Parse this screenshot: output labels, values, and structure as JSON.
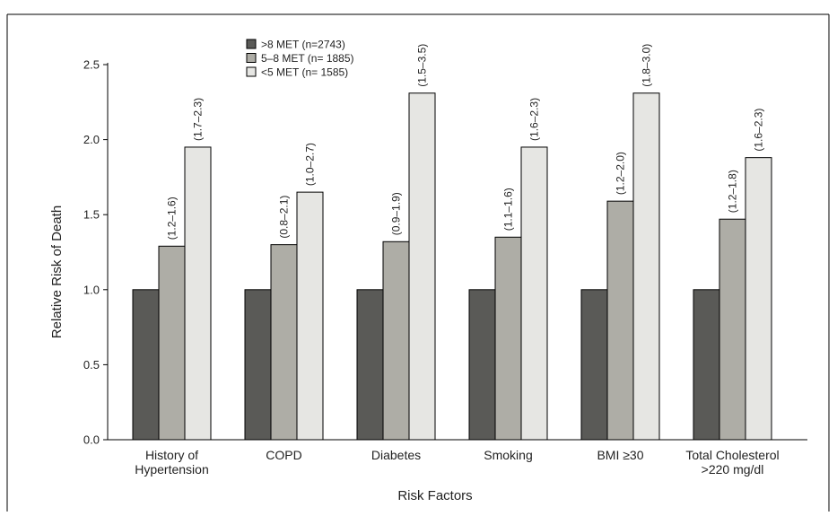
{
  "chart_data": {
    "type": "bar",
    "title": "",
    "xlabel": "Risk Factors",
    "ylabel": "Relative Risk of Death",
    "ylim": [
      0,
      2.5
    ],
    "yticks": [
      "0.0",
      "0.5",
      "1.0",
      "1.5",
      "2.0",
      "2.5"
    ],
    "grid": false,
    "legend_position": "top-center",
    "categories": [
      [
        "History of",
        "Hypertension"
      ],
      [
        "COPD"
      ],
      [
        "Diabetes"
      ],
      [
        "Smoking"
      ],
      [
        "BMI ≥30"
      ],
      [
        "Total Cholesterol",
        ">220 mg/dl"
      ]
    ],
    "series": [
      {
        "name": ">8 MET (n=2743)",
        "color": "#5a5a57",
        "values": [
          1.0,
          1.0,
          1.0,
          1.0,
          1.0,
          1.0
        ],
        "ci_labels": [
          "",
          "",
          "",
          "",
          "",
          ""
        ]
      },
      {
        "name": "5–8 MET (n= 1885)",
        "color": "#aeada6",
        "values": [
          1.29,
          1.3,
          1.32,
          1.35,
          1.59,
          1.47
        ],
        "ci_labels": [
          "(1.2–1.6)",
          "(0.8–2.1)",
          "(0.9–1.9)",
          "(1.1–1.6)",
          "(1.2–2.0)",
          "(1.2–1.8)"
        ]
      },
      {
        "name": "<5 MET (n= 1585)",
        "color": "#e6e6e3",
        "values": [
          1.95,
          1.65,
          2.31,
          1.95,
          2.31,
          1.88
        ],
        "ci_labels": [
          "(1.7–2.3)",
          "(1.0–2.7)",
          "(1.5–3.5)",
          "(1.6–2.3)",
          "(1.8–3.0)",
          "(1.6–2.3)"
        ]
      }
    ]
  }
}
